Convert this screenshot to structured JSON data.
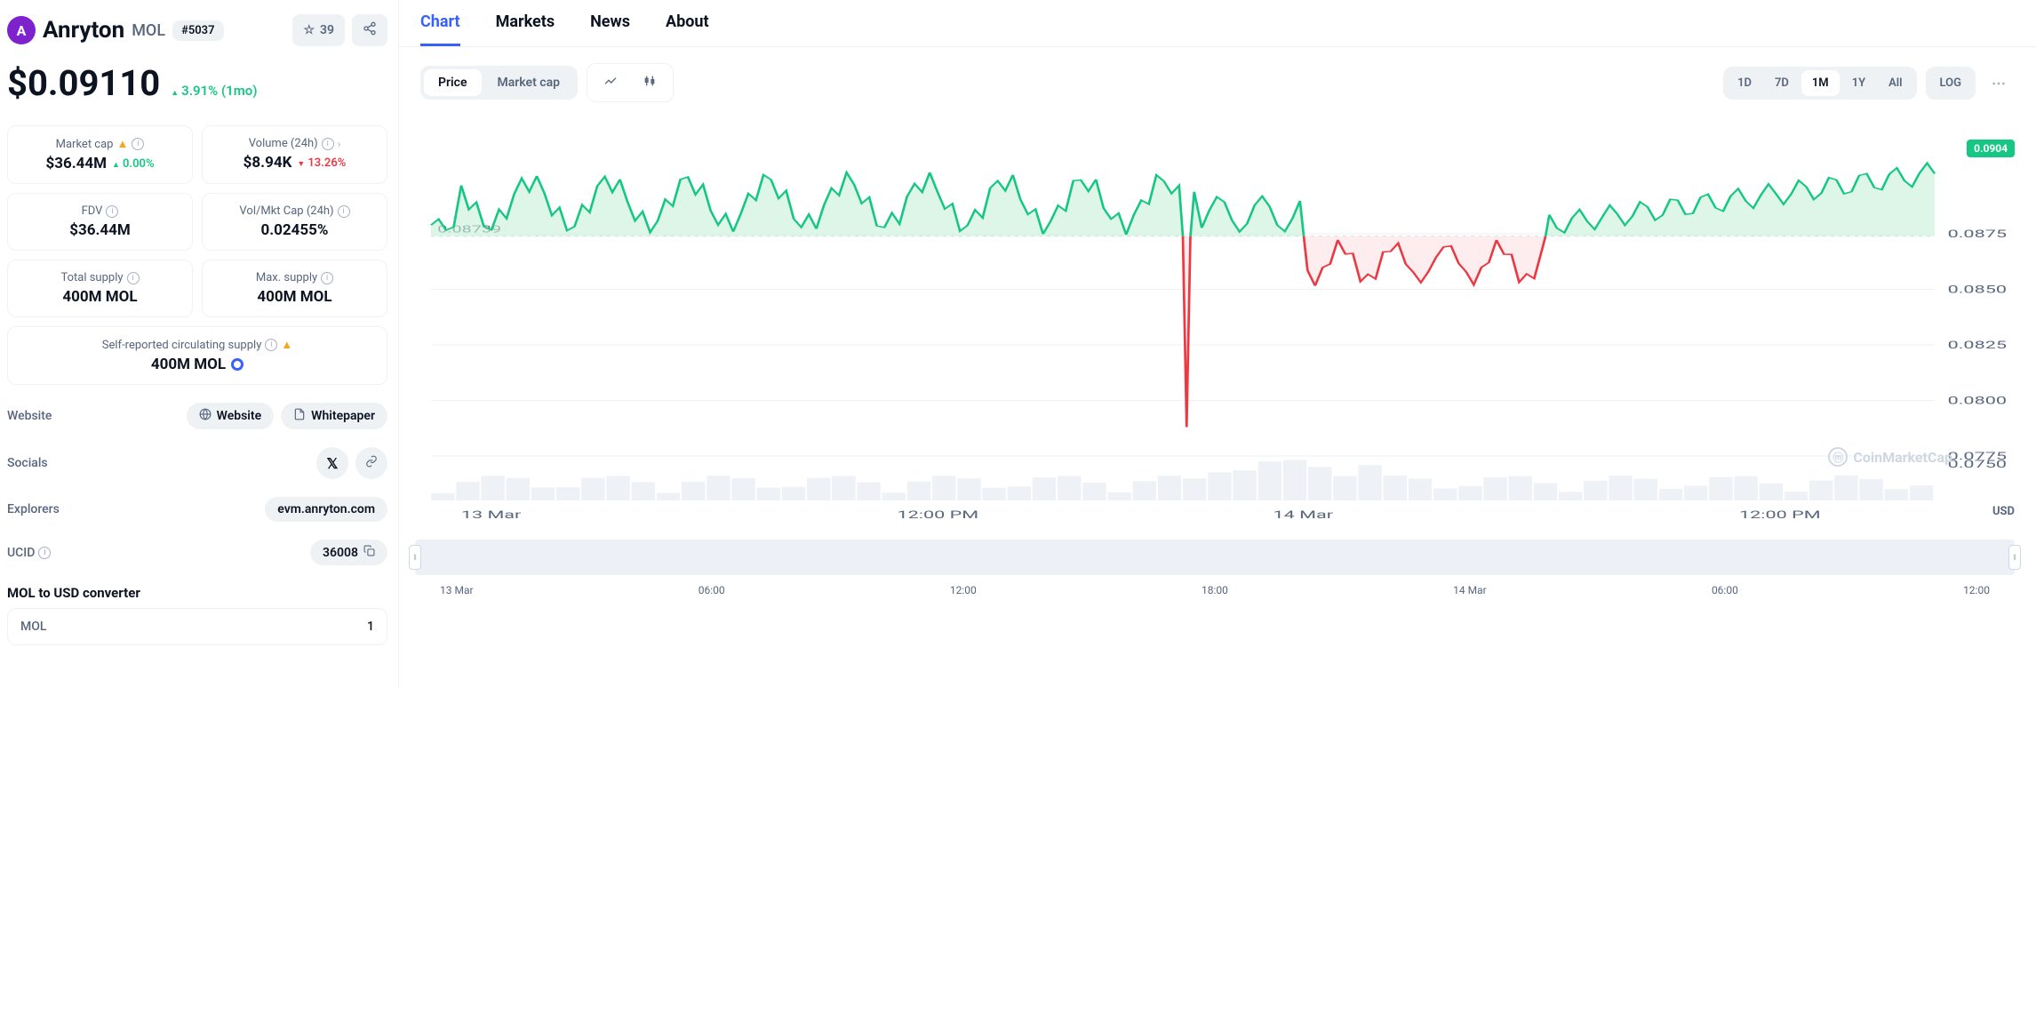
{
  "coin": {
    "name": "Anryton",
    "symbol": "MOL",
    "rank": "#5037",
    "logo_letter": "A",
    "logo_bg": "#7e22ce",
    "watchlist_count": "39",
    "price": "$0.09110",
    "change_pct": "3.91%",
    "change_period": "(1mo)",
    "change_direction": "up"
  },
  "stats": {
    "market_cap": {
      "label": "Market cap",
      "value": "$36.44M",
      "change": "0.00%",
      "change_dir": "up",
      "warn": true
    },
    "volume": {
      "label": "Volume (24h)",
      "value": "$8.94K",
      "change": "13.26%",
      "change_dir": "down",
      "chevron": true
    },
    "fdv": {
      "label": "FDV",
      "value": "$36.44M"
    },
    "vol_mcap": {
      "label": "Vol/Mkt Cap (24h)",
      "value": "0.02455%"
    },
    "total_supply": {
      "label": "Total supply",
      "value": "400M MOL"
    },
    "max_supply": {
      "label": "Max. supply",
      "value": "400M MOL"
    },
    "circ_supply": {
      "label": "Self-reported circulating supply",
      "value": "400M MOL",
      "warn": true,
      "ring": true
    }
  },
  "links": {
    "website_label": "Website",
    "website_btn": "Website",
    "whitepaper_btn": "Whitepaper",
    "socials_label": "Socials",
    "explorers_label": "Explorers",
    "explorer_url": "evm.anryton.com",
    "ucid_label": "UCID",
    "ucid_value": "36008"
  },
  "converter": {
    "title": "MOL to USD converter",
    "from_symbol": "MOL",
    "from_value": "1"
  },
  "tabs": [
    "Chart",
    "Markets",
    "News",
    "About"
  ],
  "active_tab": "Chart",
  "chart_toggle": {
    "options": [
      "Price",
      "Market cap"
    ],
    "active": "Price"
  },
  "ranges": [
    "1D",
    "7D",
    "1M",
    "1Y",
    "All"
  ],
  "active_range": "1M",
  "scale_label": "LOG",
  "chart": {
    "ylim": [
      0.0775,
      0.0925
    ],
    "yticks": [
      0.0775,
      0.08,
      0.0825,
      0.085,
      0.0875
    ],
    "yticklabels": [
      "0.0775",
      "0.0800",
      "0.0825",
      "0.0850",
      "0.0875"
    ],
    "xticklabels": [
      "13 Mar",
      "12:00 PM",
      "14 Mar",
      "12:00 PM"
    ],
    "xtick_positions": [
      0.02,
      0.31,
      0.56,
      0.87
    ],
    "baseline": 0.08739,
    "baseline_label": "0.08739",
    "last_price_label": "0.0904",
    "usd_label": "USD",
    "watermark": "CoinMarketCap",
    "colors": {
      "up_line": "#16c784",
      "up_fill": "#c7f0d8",
      "down_line": "#ea3943",
      "down_fill": "#fce1e2",
      "grid": "#eff2f5",
      "baseline": "#cfd6e4",
      "volume_bar": "#eef1f6"
    }
  },
  "navigator": {
    "labels": [
      "13 Mar",
      "06:00",
      "12:00",
      "18:00",
      "14 Mar",
      "06:00",
      "12:00"
    ]
  }
}
